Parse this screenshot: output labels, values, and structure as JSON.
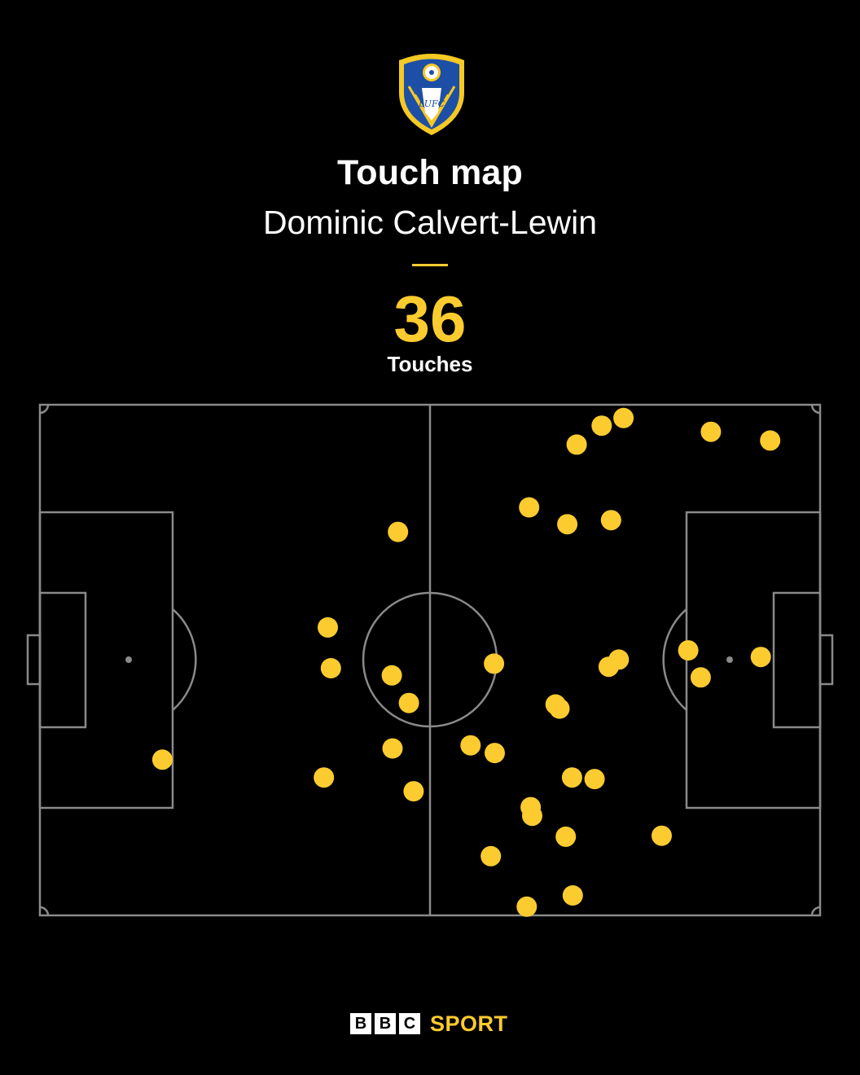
{
  "colors": {
    "background": "#000000",
    "accent": "#FCCB2F",
    "pitch_lines": "#8A8A8A",
    "text": "#FFFFFF",
    "crest_blue": "#1D4FA6",
    "crest_yellow": "#F6C923"
  },
  "crest": {
    "text": "LUFC",
    "icon": "leeds-united-crest-icon"
  },
  "header": {
    "title": "Touch map",
    "player": "Dominic Calvert-Lewin"
  },
  "stat": {
    "value": "36",
    "label": "Touches"
  },
  "footer": {
    "bbc_letters": [
      "B",
      "B",
      "C"
    ],
    "sport_label": "SPORT"
  },
  "chart_data": {
    "type": "scatter",
    "title": "Touch map",
    "subtitle": "Dominic Calvert-Lewin",
    "description_units": "pitch coordinates, x 0-100 along length (left goal to right goal), y 0-100 across width (top touchline to bottom touchline)",
    "xlim": [
      0,
      100
    ],
    "ylim": [
      0,
      100
    ],
    "grid": false,
    "series": [
      {
        "points": [
          {
            "x": 74.8,
            "y": 2.6
          },
          {
            "x": 72.0,
            "y": 4.1
          },
          {
            "x": 68.8,
            "y": 7.8
          },
          {
            "x": 86.0,
            "y": 5.3
          },
          {
            "x": 93.6,
            "y": 7.0
          },
          {
            "x": 62.7,
            "y": 20.1
          },
          {
            "x": 67.6,
            "y": 23.4
          },
          {
            "x": 73.2,
            "y": 22.6
          },
          {
            "x": 45.9,
            "y": 24.9
          },
          {
            "x": 36.9,
            "y": 43.6
          },
          {
            "x": 37.3,
            "y": 51.6
          },
          {
            "x": 45.1,
            "y": 53.0
          },
          {
            "x": 47.3,
            "y": 58.4
          },
          {
            "x": 58.2,
            "y": 50.7
          },
          {
            "x": 74.2,
            "y": 49.9
          },
          {
            "x": 72.9,
            "y": 51.3
          },
          {
            "x": 83.1,
            "y": 48.1
          },
          {
            "x": 84.7,
            "y": 53.4
          },
          {
            "x": 92.4,
            "y": 49.4
          },
          {
            "x": 66.1,
            "y": 58.7
          },
          {
            "x": 66.6,
            "y": 59.5
          },
          {
            "x": 15.7,
            "y": 69.5
          },
          {
            "x": 45.2,
            "y": 67.3
          },
          {
            "x": 55.2,
            "y": 66.7
          },
          {
            "x": 58.3,
            "y": 68.2
          },
          {
            "x": 36.4,
            "y": 73.0
          },
          {
            "x": 47.9,
            "y": 75.7
          },
          {
            "x": 68.2,
            "y": 73.0
          },
          {
            "x": 71.1,
            "y": 73.3
          },
          {
            "x": 62.9,
            "y": 78.8
          },
          {
            "x": 63.1,
            "y": 80.5
          },
          {
            "x": 67.4,
            "y": 84.6
          },
          {
            "x": 79.7,
            "y": 84.4
          },
          {
            "x": 57.8,
            "y": 88.4
          },
          {
            "x": 68.3,
            "y": 96.1
          },
          {
            "x": 62.4,
            "y": 98.3
          }
        ]
      }
    ]
  }
}
